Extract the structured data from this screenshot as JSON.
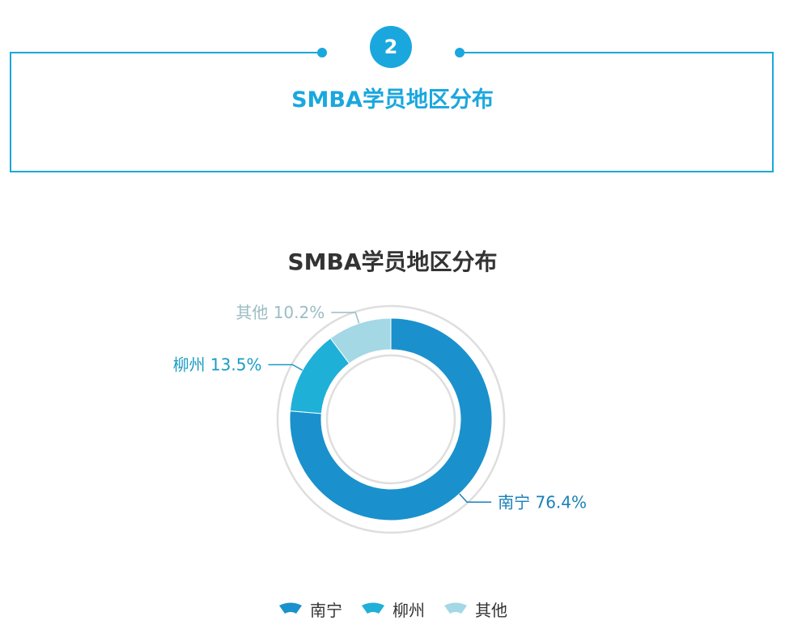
{
  "header": {
    "badge_number": "2",
    "title": "SMBA学员地区分布",
    "accent_color": "#1aa7de"
  },
  "chart_data": {
    "type": "pie",
    "title": "SMBA学员地区分布",
    "categories": [
      "南宁",
      "柳州",
      "其他"
    ],
    "values": [
      76.4,
      13.5,
      10.2
    ],
    "value_labels": [
      "南宁 76.4%",
      "柳州 13.5%",
      "其他 10.2%"
    ],
    "colors": [
      "#1a91cc",
      "#1fb0d8",
      "#a3d8e4"
    ],
    "label_colors": [
      "#1a80b8",
      "#1a9cc4",
      "#9bbcc4"
    ],
    "legend_placement": "bottom",
    "donut": true
  }
}
